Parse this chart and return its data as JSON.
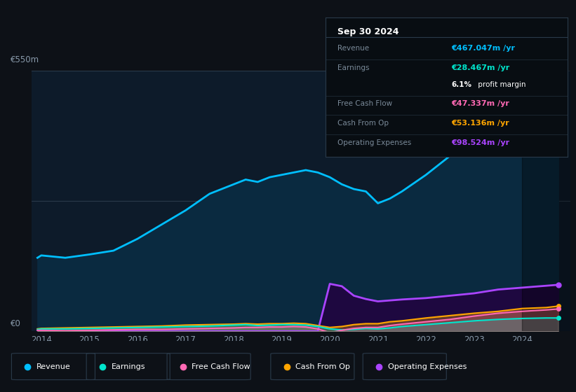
{
  "background_color": "#0d1117",
  "plot_bg_color": "#0d1b2a",
  "ylabel_top": "€550m",
  "ylabel_zero": "€0",
  "x_years": [
    2013.92,
    2014.0,
    2014.5,
    2015.0,
    2015.5,
    2016.0,
    2016.5,
    2017.0,
    2017.5,
    2018.0,
    2018.25,
    2018.5,
    2018.75,
    2019.0,
    2019.25,
    2019.5,
    2019.75,
    2020.0,
    2020.25,
    2020.5,
    2020.75,
    2021.0,
    2021.25,
    2021.5,
    2022.0,
    2022.5,
    2023.0,
    2023.5,
    2024.0,
    2024.5,
    2024.75
  ],
  "revenue": [
    155,
    160,
    155,
    162,
    170,
    195,
    225,
    255,
    290,
    310,
    320,
    315,
    325,
    330,
    335,
    340,
    335,
    325,
    310,
    300,
    295,
    270,
    280,
    295,
    330,
    370,
    420,
    470,
    490,
    480,
    467
  ],
  "earnings": [
    4,
    5,
    5,
    6,
    7,
    8,
    9,
    10,
    11,
    13,
    14,
    12,
    13,
    14,
    14,
    13,
    10,
    5,
    3,
    4,
    6,
    5,
    7,
    10,
    14,
    18,
    22,
    25,
    27,
    28,
    28
  ],
  "free_cash_flow": [
    2,
    2,
    1,
    2,
    3,
    4,
    4,
    5,
    6,
    7,
    8,
    8,
    9,
    9,
    10,
    9,
    5,
    -3,
    2,
    6,
    8,
    8,
    12,
    15,
    20,
    25,
    32,
    38,
    42,
    45,
    47
  ],
  "cash_from_op": [
    5,
    6,
    7,
    8,
    9,
    10,
    11,
    13,
    14,
    15,
    16,
    15,
    16,
    16,
    17,
    16,
    12,
    8,
    10,
    14,
    16,
    16,
    20,
    22,
    28,
    33,
    38,
    42,
    48,
    50,
    53
  ],
  "operating_expenses": [
    0,
    0,
    0,
    0,
    0,
    0,
    0,
    0,
    0,
    0,
    0,
    0,
    0,
    0,
    0,
    0,
    0,
    100,
    95,
    75,
    68,
    63,
    65,
    67,
    70,
    75,
    80,
    88,
    92,
    96,
    98
  ],
  "revenue_color": "#00bfff",
  "earnings_color": "#00e5cc",
  "fcf_color": "#ff69b4",
  "cash_op_color": "#ffa500",
  "op_exp_color": "#aa44ff",
  "revenue_fill": "#0a2a40",
  "op_exp_fill": "#1e0840",
  "ylim": [
    0,
    550
  ],
  "xlim_min": 2013.8,
  "xlim_max": 2025.0,
  "grid_lines": [
    0,
    275,
    550
  ],
  "dark_region_start": 2024.0,
  "info_box": {
    "date": "Sep 30 2024",
    "rows": [
      {
        "label": "Revenue",
        "value": "€467.047m /yr",
        "color": "#00bfff",
        "separator": true
      },
      {
        "label": "Earnings",
        "value": "€28.467m /yr",
        "color": "#00e5cc",
        "separator": false
      },
      {
        "label": "",
        "value": "",
        "color": "",
        "separator": true,
        "margin": "6.1% profit margin"
      },
      {
        "label": "Free Cash Flow",
        "value": "€47.337m /yr",
        "color": "#ff69b4",
        "separator": true
      },
      {
        "label": "Cash From Op",
        "value": "€53.136m /yr",
        "color": "#ffa500",
        "separator": true
      },
      {
        "label": "Operating Expenses",
        "value": "€98.524m /yr",
        "color": "#aa44ff",
        "separator": false
      }
    ]
  },
  "legend": [
    {
      "label": "Revenue",
      "color": "#00bfff"
    },
    {
      "label": "Earnings",
      "color": "#00e5cc"
    },
    {
      "label": "Free Cash Flow",
      "color": "#ff69b4"
    },
    {
      "label": "Cash From Op",
      "color": "#ffa500"
    },
    {
      "label": "Operating Expenses",
      "color": "#aa44ff"
    }
  ]
}
